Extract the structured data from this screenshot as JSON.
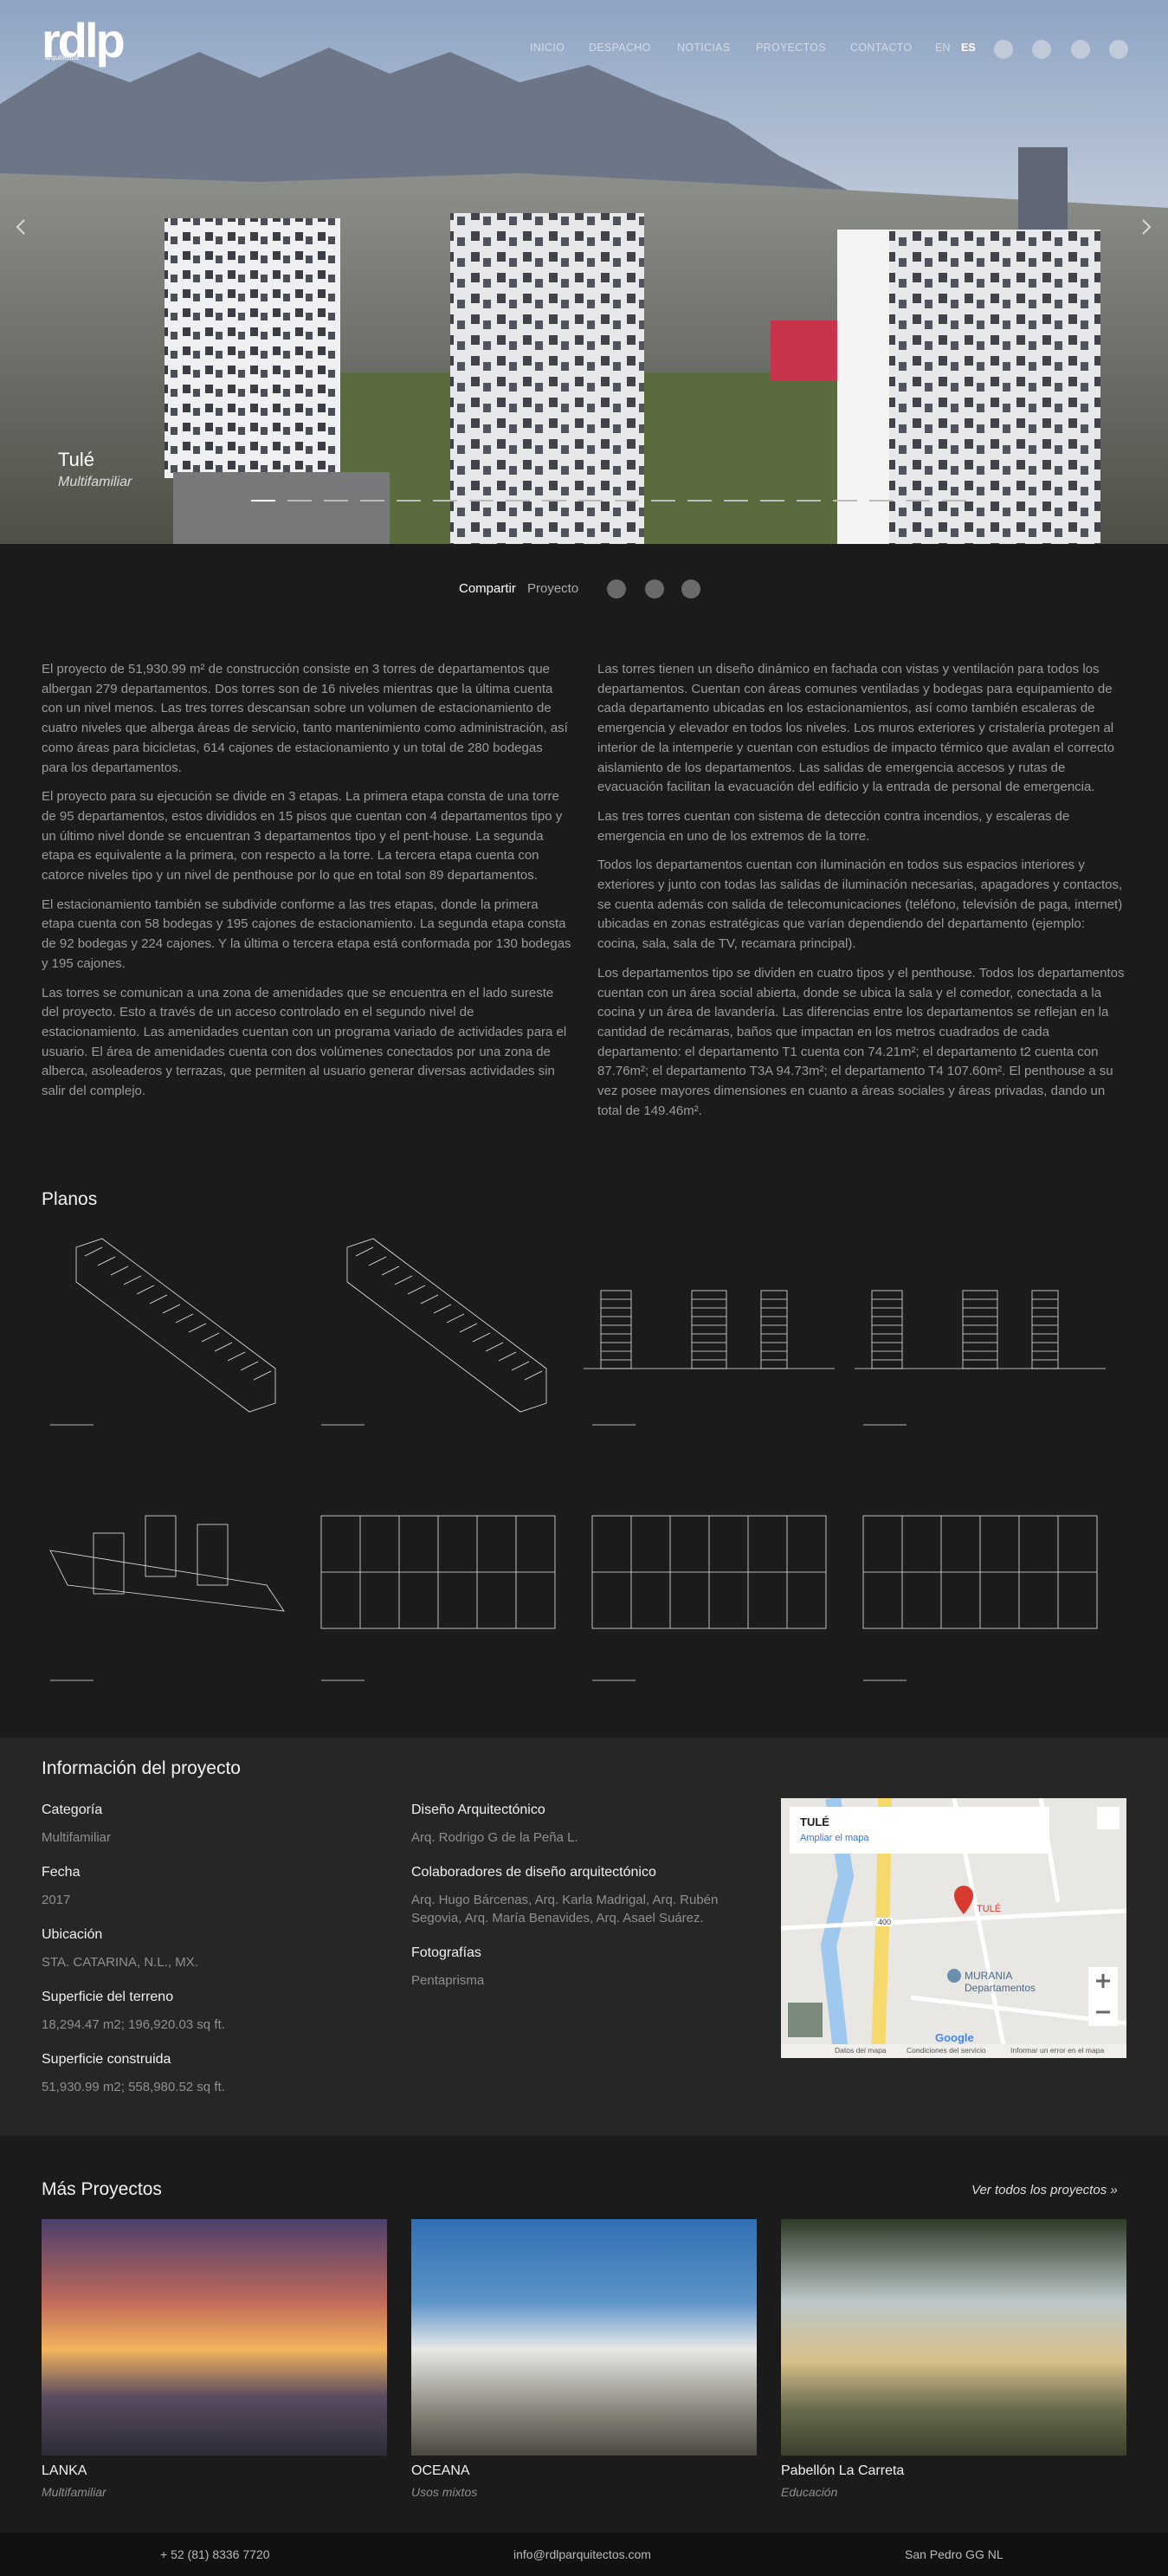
{
  "header": {
    "logo": "rdlp",
    "logo_sub": "arquitectos",
    "nav": [
      "INICIO",
      "DESPACHO",
      "NOTICIAS",
      "PROYECTOS",
      "CONTACTO"
    ],
    "languages": [
      "EN",
      "ES"
    ]
  },
  "hero": {
    "title": "Tulé",
    "subtitle": "Multifamiliar"
  },
  "share": {
    "label": "Compartir",
    "label_2": "Proyecto"
  },
  "description": {
    "left": [
      "El proyecto de 51,930.99 m² de construcción consiste en 3 torres de departamentos que albergan 279 departamentos. Dos torres son de 16 niveles mientras que la última cuenta con un nivel menos. Las tres torres descansan sobre un volumen de estacionamiento de cuatro niveles que alberga áreas de servicio, tanto mantenimiento como administración, así como áreas para bicicletas, 614 cajones de estacionamiento y un total de 280 bodegas para los departamentos.",
      "El proyecto para su ejecución se divide en 3 etapas. La primera etapa consta de una torre de 95 departamentos, estos divididos en 15 pisos que cuentan con 4 departamentos tipo y un último nivel donde se encuentran 3 departamentos tipo y el pent-house. La segunda etapa es equivalente a la primera, con respecto a la torre. La tercera etapa cuenta con catorce niveles tipo y un nivel de penthouse por lo que en total son 89 departamentos.",
      "El estacionamiento también se subdivide conforme a las tres etapas, donde la primera etapa cuenta con 58 bodegas y 195 cajones de estacionamiento. La segunda etapa consta de 92 bodegas y 224 cajones. Y la última o tercera etapa está conformada por 130 bodegas y 195 cajones.",
      "Las torres se comunican a una zona de amenidades que se encuentra en el lado sureste del proyecto. Esto a través de un acceso controlado en el segundo nivel de estacionamiento. Las amenidades cuentan con un programa variado de actividades para el usuario. El área de amenidades cuenta con dos volúmenes conectados por una zona de alberca, asoleaderos y terrazas, que permiten al usuario generar diversas actividades sin salir del complejo."
    ],
    "right": [
      "Las torres tienen un diseño dinámico en fachada con vistas y ventilación para todos los departamentos. Cuentan con áreas comunes ventiladas y bodegas para equipamiento de cada departamento ubicadas en los estacionamientos, así como también escaleras de emergencia y elevador en todos los niveles. Los muros exteriores y cristalería protegen al interior de la intemperie y cuentan con estudios de impacto térmico que avalan el correcto aislamiento de los departamentos. Las salidas de emergencia accesos y rutas de evacuación facilitan la evacuación del edificio y la entrada de personal de emergencia.",
      "Las tres torres cuentan con sistema de detección contra incendios, y escaleras de emergencia en uno de los extremos de la torre.",
      "Todos los departamentos cuentan con iluminación en todos sus espacios interiores y exteriores y junto con todas las salidas de iluminación necesarias, apagadores y contactos, se cuenta además con salida de telecomunicaciones (teléfono, televisión de paga, internet) ubicadas en zonas estratégicas que varían dependiendo del departamento (ejemplo: cocina, sala, sala de TV, recamara principal).",
      "Los departamentos tipo se dividen en cuatro tipos y el penthouse. Todos los departamentos cuentan con un área social abierta, donde se ubica la sala y el comedor, conectada a la cocina y un área de lavandería. Las diferencias entre los departamentos se reflejan en la cantidad de recámaras, baños que impactan en los metros cuadrados de cada departamento: el departamento T1 cuenta con 74.21m²; el departamento t2 cuenta con 87.76m²; el departamento T3A 94.73m²; el departamento T4 107.60m². El penthouse a su vez posee mayores dimensiones en cuanto a áreas sociales y áreas privadas, dando un total de 149.46m²."
    ]
  },
  "planos": {
    "title": "Planos"
  },
  "info": {
    "title": "Información del proyecto",
    "left": [
      {
        "label": "Categoría",
        "value": "Multifamiliar"
      },
      {
        "label": "Fecha",
        "value": "2017"
      },
      {
        "label": "Ubicación",
        "value": "STA. CATARINA, N.L., MX."
      },
      {
        "label": "Superficie del terreno",
        "value": "18,294.47 m2; 196,920.03 sq ft."
      },
      {
        "label": "Superficie construida",
        "value": "51,930.99 m2; 558,980.52 sq ft."
      }
    ],
    "middle": [
      {
        "label": "Diseño Arquitectónico",
        "value": "Arq. Rodrigo G de la Peña L."
      },
      {
        "label": "Colaboradores de diseño arquitectónico",
        "value": "Arq. Hugo Bárcenas, Arq. Karla Madrigal, Arq. Rubén Segovia, Arq. María Benavides, Arq. Asael Suárez."
      },
      {
        "label": "Fotografías",
        "value": "Pentaprisma"
      }
    ]
  },
  "map": {
    "card_title": "TULÉ",
    "card_link": "Ampliar el mapa",
    "pin": "TULÉ",
    "place": "MURANIA",
    "place_2": "Departamentos",
    "road": "400",
    "brand": "Google",
    "footer": [
      "Datos del mapa",
      "Condiciones del servicio",
      "Informar un error en el mapa"
    ]
  },
  "more": {
    "title": "Más Proyectos",
    "link": "Ver todos los proyectos »",
    "projects": [
      {
        "name": "LANKA",
        "type": "Multifamiliar"
      },
      {
        "name": "OCEANA",
        "type": "Usos mixtos"
      },
      {
        "name": "Pabellón La Carreta",
        "type": "Educación"
      }
    ]
  },
  "footer": {
    "phone": "+ 52 (81) 8336 7720",
    "email": "info@rdlparquitectos.com",
    "city": "San Pedro GG NL"
  }
}
